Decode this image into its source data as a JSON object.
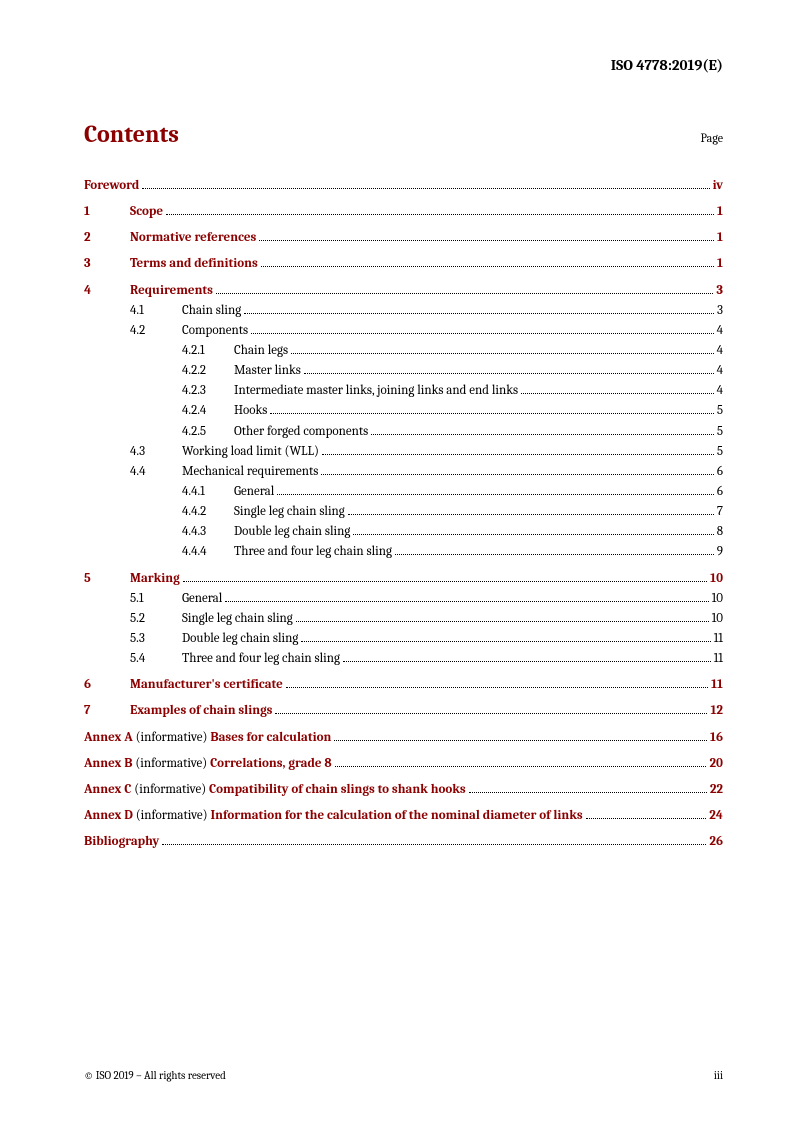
{
  "header_code": "ISO 4778:2019(E)",
  "contents_title": "Contents",
  "page_label": "Page",
  "footer_left": "© ISO 2019 – All rights reserved",
  "footer_right": "iii",
  "colors": {
    "accent": "#8b0000",
    "text": "#000000",
    "background": "#ffffff"
  },
  "typography": {
    "title_fontsize": 24,
    "body_fontsize": 13,
    "footer_fontsize": 11
  },
  "entries": {
    "foreword": {
      "title": "Foreword",
      "page": "iv"
    },
    "s1": {
      "num": "1",
      "title": "Scope",
      "page": "1"
    },
    "s2": {
      "num": "2",
      "title": "Normative references",
      "page": "1"
    },
    "s3": {
      "num": "3",
      "title": "Terms and definitions",
      "page": "1"
    },
    "s4": {
      "num": "4",
      "title": "Requirements",
      "page": "3"
    },
    "s4_1": {
      "num": "4.1",
      "title": "Chain sling",
      "page": "3"
    },
    "s4_2": {
      "num": "4.2",
      "title": "Components",
      "page": "4"
    },
    "s4_2_1": {
      "num": "4.2.1",
      "title": "Chain legs",
      "page": "4"
    },
    "s4_2_2": {
      "num": "4.2.2",
      "title": "Master links",
      "page": "4"
    },
    "s4_2_3": {
      "num": "4.2.3",
      "title": "Intermediate master links, joining links and end links",
      "page": "4"
    },
    "s4_2_4": {
      "num": "4.2.4",
      "title": "Hooks",
      "page": "5"
    },
    "s4_2_5": {
      "num": "4.2.5",
      "title": "Other forged components",
      "page": "5"
    },
    "s4_3": {
      "num": "4.3",
      "title": "Working load limit (WLL)",
      "page": "5"
    },
    "s4_4": {
      "num": "4.4",
      "title": "Mechanical requirements",
      "page": "6"
    },
    "s4_4_1": {
      "num": "4.4.1",
      "title": "General",
      "page": "6"
    },
    "s4_4_2": {
      "num": "4.4.2",
      "title": "Single leg chain sling",
      "page": "7"
    },
    "s4_4_3": {
      "num": "4.4.3",
      "title": "Double leg chain sling",
      "page": "8"
    },
    "s4_4_4": {
      "num": "4.4.4",
      "title": "Three and four leg chain sling",
      "page": "9"
    },
    "s5": {
      "num": "5",
      "title": "Marking",
      "page": "10"
    },
    "s5_1": {
      "num": "5.1",
      "title": "General",
      "page": "10"
    },
    "s5_2": {
      "num": "5.2",
      "title": "Single leg chain sling",
      "page": "10"
    },
    "s5_3": {
      "num": "5.3",
      "title": "Double leg chain sling",
      "page": "11"
    },
    "s5_4": {
      "num": "5.4",
      "title": "Three and four leg chain sling",
      "page": "11"
    },
    "s6": {
      "num": "6",
      "title": "Manufacturer's certificate",
      "page": "11"
    },
    "s7": {
      "num": "7",
      "title": "Examples of chain slings",
      "page": "12"
    },
    "annexA": {
      "prefix": "Annex A",
      "qual": " (informative) ",
      "title": "Bases for calculation",
      "page": "16"
    },
    "annexB": {
      "prefix": "Annex B",
      "qual": " (informative) ",
      "title": "Correlations, grade 8",
      "page": "20"
    },
    "annexC": {
      "prefix": "Annex C",
      "qual": " (informative) ",
      "title": "Compatibility of chain slings to shank hooks",
      "page": "22"
    },
    "annexD": {
      "prefix": "Annex D",
      "qual": " (informative) ",
      "title": "Information for the calculation of the nominal diameter of links",
      "page": "24"
    },
    "biblio": {
      "title": "Bibliography",
      "page": "26"
    }
  }
}
